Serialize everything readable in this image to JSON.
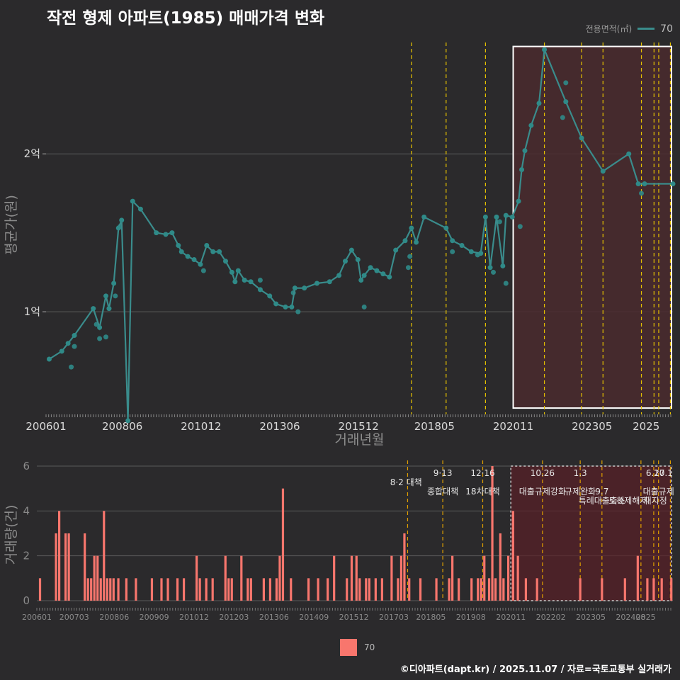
{
  "title": "작전 형제 아파트(1985) 매매가격 변화",
  "legend": {
    "title": "전용면적(㎡)",
    "series": "70"
  },
  "footer": "©디아파트(dapt.kr) / 2025.11.07 / 자료=국토교통부 실거래가",
  "colors": {
    "line": "#3a8c8c",
    "point": "#2f8a88",
    "bar": "#f8766d",
    "policy_line": "#e6c200",
    "highlight": "#4a2a2e",
    "bg": "#2b2a2c"
  },
  "chart_data": [
    {
      "type": "line",
      "name": "price",
      "xlabel": "거래년월",
      "ylabel": "평균가(원)",
      "x_range": [
        2006.0,
        2025.9
      ],
      "ylim": [
        3500,
        27500
      ],
      "unit": "만원",
      "y_ticks": [
        {
          "value": 10000,
          "label": "1억"
        },
        {
          "value": 20000,
          "label": "2억"
        }
      ],
      "x_ticks": [
        {
          "value": 2006.0,
          "label": "200601"
        },
        {
          "value": 2008.42,
          "label": "200806"
        },
        {
          "value": 2010.92,
          "label": "201012"
        },
        {
          "value": 2013.42,
          "label": "201306"
        },
        {
          "value": 2015.92,
          "label": "201512"
        },
        {
          "value": 2018.33,
          "label": "201805"
        },
        {
          "value": 2020.83,
          "label": "202011"
        },
        {
          "value": 2023.33,
          "label": "202305"
        },
        {
          "value": 2025.05,
          "label": "2025"
        }
      ],
      "highlight_range": [
        2020.83,
        2025.9
      ],
      "policy_lines": [
        2017.6,
        2018.7,
        2019.95,
        2021.82,
        2023.0,
        2023.68,
        2024.9,
        2025.3,
        2025.45,
        2025.82
      ],
      "series": [
        {
          "name": "70",
          "points": [
            [
              2006.1,
              7000
            ],
            [
              2006.5,
              7500
            ],
            [
              2006.7,
              8000
            ],
            [
              2006.9,
              8500
            ],
            [
              2007.5,
              10200
            ],
            [
              2007.7,
              9000
            ],
            [
              2007.9,
              11000
            ],
            [
              2008.0,
              10200
            ],
            [
              2008.15,
              11800
            ],
            [
              2008.3,
              15300
            ],
            [
              2008.4,
              15800
            ],
            [
              2008.6,
              3100
            ],
            [
              2008.75,
              17000
            ],
            [
              2009.0,
              16500
            ],
            [
              2009.5,
              15000
            ],
            [
              2009.8,
              14900
            ],
            [
              2010.0,
              15000
            ],
            [
              2010.2,
              14200
            ],
            [
              2010.3,
              13800
            ],
            [
              2010.5,
              13500
            ],
            [
              2010.7,
              13300
            ],
            [
              2010.9,
              13000
            ],
            [
              2011.1,
              14200
            ],
            [
              2011.3,
              13800
            ],
            [
              2011.5,
              13800
            ],
            [
              2011.7,
              13200
            ],
            [
              2011.9,
              12500
            ],
            [
              2012.0,
              11900
            ],
            [
              2012.1,
              12600
            ],
            [
              2012.3,
              12000
            ],
            [
              2012.5,
              11900
            ],
            [
              2012.8,
              11400
            ],
            [
              2013.1,
              11000
            ],
            [
              2013.3,
              10500
            ],
            [
              2013.6,
              10300
            ],
            [
              2013.8,
              10300
            ],
            [
              2013.9,
              11500
            ],
            [
              2014.2,
              11500
            ],
            [
              2014.6,
              11800
            ],
            [
              2015.0,
              11900
            ],
            [
              2015.3,
              12300
            ],
            [
              2015.5,
              13200
            ],
            [
              2015.7,
              13900
            ],
            [
              2015.9,
              13300
            ],
            [
              2016.0,
              12000
            ],
            [
              2016.1,
              12300
            ],
            [
              2016.3,
              12800
            ],
            [
              2016.5,
              12600
            ],
            [
              2016.7,
              12400
            ],
            [
              2016.9,
              12200
            ],
            [
              2017.1,
              13900
            ],
            [
              2017.4,
              14500
            ],
            [
              2017.6,
              15300
            ],
            [
              2017.75,
              14400
            ],
            [
              2018.0,
              16000
            ],
            [
              2018.7,
              15300
            ],
            [
              2018.9,
              14500
            ],
            [
              2019.2,
              14200
            ],
            [
              2019.5,
              13800
            ],
            [
              2019.8,
              13700
            ],
            [
              2019.95,
              16000
            ],
            [
              2020.1,
              12800
            ],
            [
              2020.3,
              16000
            ],
            [
              2020.5,
              12900
            ],
            [
              2020.6,
              16100
            ],
            [
              2020.8,
              16000
            ],
            [
              2021.0,
              17000
            ],
            [
              2021.1,
              19000
            ],
            [
              2021.2,
              20200
            ],
            [
              2021.4,
              21800
            ],
            [
              2021.65,
              23200
            ],
            [
              2021.82,
              26600
            ],
            [
              2022.5,
              23300
            ],
            [
              2023.0,
              21000
            ],
            [
              2023.68,
              18900
            ],
            [
              2024.5,
              20000
            ],
            [
              2024.8,
              18100
            ],
            [
              2025.0,
              18100
            ],
            [
              2025.9,
              18100
            ]
          ]
        }
      ],
      "scatter_extra": [
        [
          2006.8,
          6500
        ],
        [
          2006.9,
          7800
        ],
        [
          2007.6,
          9200
        ],
        [
          2007.7,
          8300
        ],
        [
          2007.9,
          8400
        ],
        [
          2008.2,
          11000
        ],
        [
          2008.35,
          15400
        ],
        [
          2011.0,
          12600
        ],
        [
          2012.8,
          12000
        ],
        [
          2013.85,
          11200
        ],
        [
          2014.0,
          10000
        ],
        [
          2016.1,
          10300
        ],
        [
          2017.5,
          12800
        ],
        [
          2017.55,
          13500
        ],
        [
          2018.9,
          13800
        ],
        [
          2019.7,
          13600
        ],
        [
          2020.2,
          12500
        ],
        [
          2020.4,
          15700
        ],
        [
          2020.6,
          11800
        ],
        [
          2021.05,
          15400
        ],
        [
          2022.4,
          22300
        ],
        [
          2022.5,
          24500
        ],
        [
          2024.9,
          17500
        ]
      ]
    },
    {
      "type": "bar",
      "name": "volume",
      "xlabel": "",
      "ylabel": "거래량(건)",
      "ylim": [
        0,
        6
      ],
      "y_ticks": [
        0,
        2,
        4,
        6
      ],
      "x_ticks": [
        {
          "value": 2006.0,
          "label": "200601"
        },
        {
          "value": 2007.17,
          "label": "200703"
        },
        {
          "value": 2008.42,
          "label": "200806"
        },
        {
          "value": 2009.67,
          "label": "200909"
        },
        {
          "value": 2010.92,
          "label": "201012"
        },
        {
          "value": 2012.17,
          "label": "201203"
        },
        {
          "value": 2013.42,
          "label": "201306"
        },
        {
          "value": 2014.67,
          "label": "201409"
        },
        {
          "value": 2015.92,
          "label": "201512"
        },
        {
          "value": 2017.17,
          "label": "201703"
        },
        {
          "value": 2018.33,
          "label": "201805"
        },
        {
          "value": 2019.58,
          "label": "201908"
        },
        {
          "value": 2020.83,
          "label": "202011"
        },
        {
          "value": 2022.08,
          "label": "202202"
        },
        {
          "value": 2023.33,
          "label": "202305"
        },
        {
          "value": 2024.58,
          "label": "202408"
        },
        {
          "value": 2025.05,
          "label": "2025"
        }
      ],
      "highlight_range": [
        2020.83,
        2025.9
      ],
      "policy_lines": [
        2017.6,
        2018.7,
        2019.95,
        2021.82,
        2023.0,
        2023.68,
        2024.9,
        2025.3,
        2025.45,
        2025.82
      ],
      "annotations": [
        {
          "x": 2017.55,
          "row": 1,
          "text": "8·2 대책"
        },
        {
          "x": 2018.7,
          "row": 0,
          "text": "9·13"
        },
        {
          "x": 2018.7,
          "row": 2,
          "text": "종합대책"
        },
        {
          "x": 2019.95,
          "row": 0,
          "text": "12·16"
        },
        {
          "x": 2019.95,
          "row": 2,
          "text": "18차대책"
        },
        {
          "x": 2021.82,
          "row": 0,
          "text": "10.26"
        },
        {
          "x": 2021.82,
          "row": 2,
          "text": "대출규제강화"
        },
        {
          "x": 2023.0,
          "row": 0,
          "text": "1.3"
        },
        {
          "x": 2023.0,
          "row": 2,
          "text": "규제완화"
        },
        {
          "x": 2023.68,
          "row": 2,
          "text": "9.7"
        },
        {
          "x": 2023.68,
          "row": 3,
          "text": "특례대출축소"
        },
        {
          "x": 2024.5,
          "row": 3,
          "text": "토허제해제"
        },
        {
          "x": 2025.35,
          "row": 0,
          "text": "6.27"
        },
        {
          "x": 2025.6,
          "row": 0,
          "text": "10.1"
        },
        {
          "x": 2025.45,
          "row": 2,
          "text": "대출규제"
        },
        {
          "x": 2025.35,
          "row": 3,
          "text": "재지정"
        }
      ],
      "bars": [
        [
          2006.1,
          1
        ],
        [
          2006.6,
          3
        ],
        [
          2006.7,
          4
        ],
        [
          2006.9,
          3
        ],
        [
          2007.0,
          3
        ],
        [
          2007.5,
          3
        ],
        [
          2007.6,
          1
        ],
        [
          2007.7,
          1
        ],
        [
          2007.8,
          2
        ],
        [
          2007.9,
          2
        ],
        [
          2008.0,
          1
        ],
        [
          2008.1,
          4
        ],
        [
          2008.2,
          1
        ],
        [
          2008.3,
          1
        ],
        [
          2008.4,
          1
        ],
        [
          2008.55,
          1
        ],
        [
          2008.8,
          1
        ],
        [
          2009.1,
          1
        ],
        [
          2009.6,
          1
        ],
        [
          2009.9,
          1
        ],
        [
          2010.1,
          1
        ],
        [
          2010.4,
          1
        ],
        [
          2010.6,
          1
        ],
        [
          2011.0,
          2
        ],
        [
          2011.1,
          1
        ],
        [
          2011.3,
          1
        ],
        [
          2011.5,
          1
        ],
        [
          2011.9,
          2
        ],
        [
          2012.0,
          1
        ],
        [
          2012.1,
          1
        ],
        [
          2012.4,
          2
        ],
        [
          2012.6,
          1
        ],
        [
          2012.7,
          1
        ],
        [
          2013.1,
          1
        ],
        [
          2013.3,
          1
        ],
        [
          2013.5,
          1
        ],
        [
          2013.6,
          2
        ],
        [
          2013.7,
          5
        ],
        [
          2013.95,
          1
        ],
        [
          2014.5,
          1
        ],
        [
          2014.8,
          1
        ],
        [
          2015.1,
          1
        ],
        [
          2015.3,
          2
        ],
        [
          2015.7,
          1
        ],
        [
          2015.85,
          2
        ],
        [
          2016.0,
          2
        ],
        [
          2016.1,
          1
        ],
        [
          2016.3,
          1
        ],
        [
          2016.4,
          1
        ],
        [
          2016.6,
          1
        ],
        [
          2016.8,
          1
        ],
        [
          2017.1,
          2
        ],
        [
          2017.3,
          1
        ],
        [
          2017.4,
          2
        ],
        [
          2017.5,
          3
        ],
        [
          2017.65,
          1
        ],
        [
          2018.0,
          1
        ],
        [
          2018.5,
          1
        ],
        [
          2018.9,
          1
        ],
        [
          2019.0,
          2
        ],
        [
          2019.2,
          1
        ],
        [
          2019.6,
          1
        ],
        [
          2019.8,
          1
        ],
        [
          2019.9,
          1
        ],
        [
          2020.0,
          2
        ],
        [
          2020.15,
          1
        ],
        [
          2020.25,
          6
        ],
        [
          2020.35,
          1
        ],
        [
          2020.5,
          3
        ],
        [
          2020.6,
          1
        ],
        [
          2020.75,
          2
        ],
        [
          2020.9,
          4
        ],
        [
          2021.05,
          2
        ],
        [
          2021.3,
          1
        ],
        [
          2021.65,
          1
        ],
        [
          2023.0,
          1
        ],
        [
          2023.68,
          1
        ],
        [
          2024.4,
          1
        ],
        [
          2024.8,
          2
        ],
        [
          2025.1,
          1
        ],
        [
          2025.3,
          1
        ],
        [
          2025.55,
          1
        ],
        [
          2025.85,
          1
        ]
      ]
    }
  ]
}
